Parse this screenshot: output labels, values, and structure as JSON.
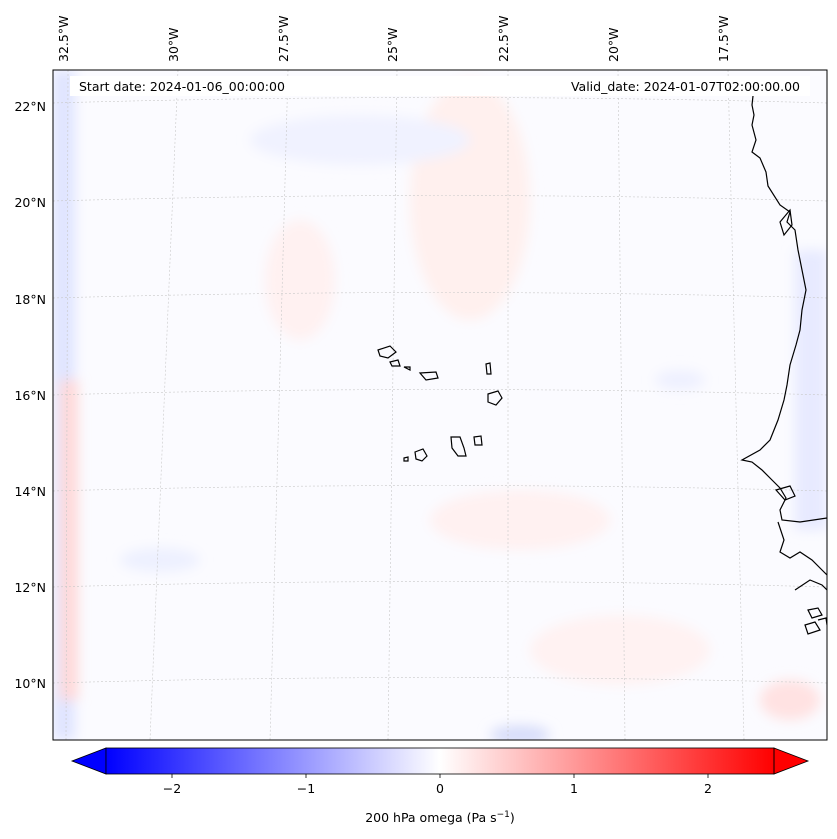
{
  "map": {
    "projection_note": "",
    "top_labels": [
      "32.5°W",
      "30°W",
      "27.5°W",
      "25°W",
      "22.5°W",
      "20°W",
      "17.5°W"
    ],
    "left_labels": [
      "22°N",
      "20°N",
      "18°N",
      "16°N",
      "14°N",
      "12°N",
      "10°N"
    ],
    "start_date_text": "Start date: 2024-01-06_00:00:00",
    "valid_date_text": "Valid_date: 2024-01-07T02:00:00.00"
  },
  "colorbar": {
    "label_main": "200 hPa omega (Pa s",
    "label_sup": "−1",
    "label_close": ")",
    "ticks": [
      "−2",
      "−1",
      "0",
      "1",
      "2"
    ],
    "colors": {
      "neg": "#0000ff",
      "mid": "#ffffff",
      "pos": "#ff0000"
    }
  }
}
